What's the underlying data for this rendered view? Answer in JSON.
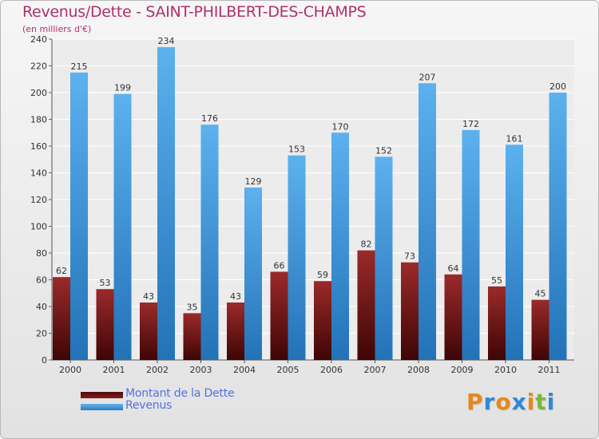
{
  "title": "Revenus/Dette - SAINT-PHILBERT-DES-CHAMPS",
  "subtitle": "(en milliers d'€)",
  "logo": "Proxiti",
  "colors": {
    "title": "#b0306a",
    "dette": "#7a1212",
    "revenus": "#3f96d6",
    "legend_text": "#5570e0"
  },
  "chart_data": {
    "type": "bar",
    "categories": [
      "2000",
      "2001",
      "2002",
      "2003",
      "2004",
      "2005",
      "2006",
      "2007",
      "2008",
      "2009",
      "2010",
      "2011"
    ],
    "series": [
      {
        "name": "Montant de la Dette",
        "values": [
          62,
          53,
          43,
          35,
          43,
          66,
          59,
          82,
          73,
          64,
          55,
          45
        ]
      },
      {
        "name": "Revenus",
        "values": [
          215,
          199,
          234,
          176,
          129,
          153,
          170,
          152,
          207,
          172,
          161,
          200
        ]
      }
    ],
    "ylim": [
      0,
      240
    ],
    "yticks": [
      0,
      20,
      40,
      60,
      80,
      100,
      120,
      140,
      160,
      180,
      200,
      220,
      240
    ],
    "grid": true,
    "legend_position": "bottom-left"
  }
}
